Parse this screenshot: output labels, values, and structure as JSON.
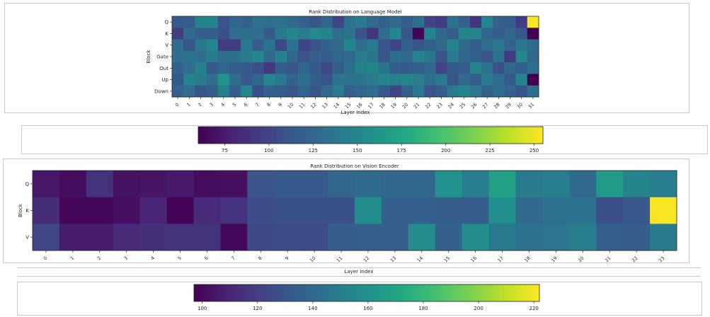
{
  "chart_data": [
    {
      "type": "heatmap",
      "title": "Rank Distribution on Language Model",
      "xlabel": "Layer Index",
      "ylabel": "Block",
      "rows": [
        "Q",
        "K",
        "V",
        "Gate",
        "Out",
        "Up",
        "Down"
      ],
      "columns": [
        "0",
        "1",
        "2",
        "3",
        "4",
        "5",
        "6",
        "7",
        "8",
        "9",
        "10",
        "11",
        "12",
        "13",
        "14",
        "15",
        "16",
        "17",
        "18",
        "19",
        "20",
        "21",
        "22",
        "23",
        "24",
        "25",
        "26",
        "27",
        "28",
        "29",
        "30",
        "31"
      ],
      "values": [
        [
          115,
          118,
          148,
          148,
          110,
          125,
          122,
          133,
          130,
          135,
          128,
          120,
          112,
          125,
          100,
          135,
          140,
          128,
          120,
          128,
          118,
          132,
          100,
          95,
          135,
          120,
          90,
          150,
          122,
          118,
          95,
          255
        ],
        [
          95,
          128,
          118,
          118,
          108,
          130,
          132,
          130,
          115,
          138,
          150,
          140,
          152,
          148,
          130,
          135,
          110,
          90,
          130,
          150,
          112,
          62,
          148,
          125,
          118,
          148,
          148,
          125,
          118,
          125,
          112,
          60
        ],
        [
          130,
          112,
          138,
          150,
          95,
          95,
          138,
          118,
          135,
          102,
          135,
          100,
          110,
          120,
          128,
          148,
          130,
          140,
          112,
          100,
          120,
          110,
          122,
          128,
          148,
          128,
          118,
          132,
          138,
          122,
          138,
          128
        ],
        [
          130,
          135,
          130,
          140,
          130,
          132,
          140,
          150,
          128,
          145,
          125,
          110,
          120,
          118,
          125,
          128,
          140,
          135,
          112,
          132,
          128,
          148,
          138,
          110,
          140,
          125,
          120,
          112,
          135,
          95,
          150,
          125
        ],
        [
          120,
          130,
          145,
          115,
          125,
          118,
          115,
          108,
          92,
          118,
          112,
          125,
          115,
          102,
          118,
          132,
          145,
          148,
          135,
          118,
          115,
          120,
          125,
          100,
          115,
          118,
          148,
          135,
          108,
          125,
          120,
          130
        ],
        [
          115,
          148,
          140,
          130,
          160,
          130,
          115,
          125,
          150,
          138,
          120,
          132,
          118,
          110,
          135,
          135,
          135,
          140,
          148,
          145,
          150,
          142,
          130,
          140,
          112,
          128,
          118,
          140,
          130,
          115,
          148,
          55
        ],
        [
          120,
          130,
          112,
          118,
          145,
          118,
          150,
          108,
          120,
          118,
          112,
          125,
          112,
          128,
          140,
          118,
          125,
          130,
          115,
          100,
          118,
          138,
          110,
          118,
          140,
          148,
          138,
          122,
          130,
          120,
          112,
          132
        ]
      ],
      "colorbar": {
        "min": 60,
        "max": 255,
        "ticks": [
          75,
          100,
          125,
          150,
          175,
          200,
          225,
          250
        ]
      }
    },
    {
      "type": "heatmap",
      "title": "Rank Distribution on Vision Encoder",
      "xlabel": "Layer Index",
      "ylabel": "Block",
      "rows": [
        "Q",
        "K",
        "V"
      ],
      "columns": [
        "0",
        "1",
        "2",
        "3",
        "4",
        "5",
        "6",
        "7",
        "8",
        "9",
        "10",
        "11",
        "12",
        "13",
        "14",
        "15",
        "16",
        "17",
        "18",
        "19",
        "20",
        "21",
        "22",
        "23"
      ],
      "values": [
        [
          105,
          101,
          115,
          103,
          104,
          106,
          101,
          102,
          130,
          132,
          132,
          138,
          140,
          138,
          138,
          160,
          150,
          168,
          148,
          150,
          140,
          165,
          153,
          150
        ],
        [
          113,
          99,
          99,
          102,
          110,
          98,
          112,
          115,
          126,
          128,
          128,
          128,
          158,
          135,
          135,
          134,
          134,
          159,
          140,
          144,
          144,
          127,
          131,
          221
        ],
        [
          123,
          107,
          107,
          112,
          114,
          115,
          115,
          100,
          125,
          126,
          126,
          134,
          135,
          135,
          157,
          136,
          158,
          148,
          144,
          146,
          150,
          135,
          134,
          149
        ]
      ],
      "colorbar": {
        "min": 97,
        "max": 222,
        "ticks": [
          100,
          120,
          140,
          160,
          180,
          200,
          220
        ]
      }
    }
  ]
}
